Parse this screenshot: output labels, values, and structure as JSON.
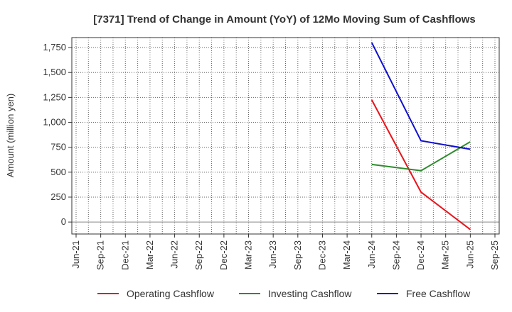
{
  "chart_data": {
    "type": "line",
    "title": "[7371]  Trend of Change in Amount (YoY) of 12Mo Moving Sum of Cashflows",
    "xlabel": "",
    "ylabel": "Amount (million yen)",
    "categories": [
      "Jun-21",
      "Sep-21",
      "Dec-21",
      "Mar-22",
      "Jun-22",
      "Sep-22",
      "Dec-22",
      "Mar-23",
      "Jun-23",
      "Sep-23",
      "Dec-23",
      "Mar-24",
      "Jun-24",
      "Sep-24",
      "Dec-24",
      "Mar-25",
      "Jun-25",
      "Sep-25"
    ],
    "yticks": [
      0,
      250,
      500,
      750,
      1000,
      1250,
      1500,
      1750
    ],
    "ytick_labels": [
      "0",
      "250",
      "500",
      "750",
      "1,000",
      "1,250",
      "1,500",
      "1,750"
    ],
    "ylim": [
      -120,
      1850
    ],
    "grid": true,
    "legend_position": "bottom",
    "series": [
      {
        "name": "Operating Cashflow",
        "color": "#e8141b",
        "x": [
          "Jun-24",
          "Dec-24",
          "Jun-25"
        ],
        "values": [
          1225,
          300,
          -75
        ]
      },
      {
        "name": "Investing Cashflow",
        "color": "#2e8b2e",
        "x": [
          "Jun-24",
          "Dec-24",
          "Jun-25"
        ],
        "values": [
          578,
          515,
          805
        ]
      },
      {
        "name": "Free Cashflow",
        "color": "#1010cc",
        "x": [
          "Jun-24",
          "Dec-24",
          "Jun-25"
        ],
        "values": [
          1800,
          815,
          730
        ]
      }
    ]
  }
}
